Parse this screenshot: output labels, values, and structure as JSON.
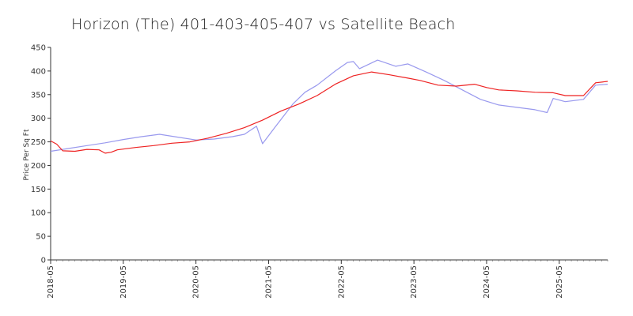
{
  "chart_data": {
    "type": "line",
    "title": "Horizon (The) 401-403-405-407 vs Satellite Beach",
    "xlabel": "",
    "ylabel": "Price Per Sq Ft",
    "ylim": [
      0,
      450
    ],
    "yticks": [
      0,
      50,
      100,
      150,
      200,
      250,
      300,
      350,
      400,
      450
    ],
    "xlim": [
      "2018-05",
      "2026-01"
    ],
    "xticks": [
      "2018-05",
      "2019-05",
      "2020-05",
      "2021-05",
      "2022-05",
      "2023-05",
      "2024-05",
      "2025-05"
    ],
    "grid": false,
    "legend": "none",
    "series": [
      {
        "color": "#9999ee",
        "points": [
          [
            "2018-05",
            230
          ],
          [
            "2018-08",
            236
          ],
          [
            "2018-11",
            242
          ],
          [
            "2019-02",
            248
          ],
          [
            "2019-05",
            255
          ],
          [
            "2019-08",
            261
          ],
          [
            "2019-11",
            266
          ],
          [
            "2020-02",
            260
          ],
          [
            "2020-05",
            254
          ],
          [
            "2020-08",
            256
          ],
          [
            "2020-11",
            261
          ],
          [
            "2021-01",
            266
          ],
          [
            "2021-03",
            283
          ],
          [
            "2021-04",
            246
          ],
          [
            "2021-06",
            280
          ],
          [
            "2021-09",
            330
          ],
          [
            "2021-11",
            355
          ],
          [
            "2022-01",
            370
          ],
          [
            "2022-04",
            400
          ],
          [
            "2022-06",
            418
          ],
          [
            "2022-07",
            420
          ],
          [
            "2022-08",
            405
          ],
          [
            "2022-11",
            423
          ],
          [
            "2023-02",
            410
          ],
          [
            "2023-04",
            415
          ],
          [
            "2023-07",
            398
          ],
          [
            "2023-10",
            380
          ],
          [
            "2024-01",
            360
          ],
          [
            "2024-04",
            340
          ],
          [
            "2024-07",
            328
          ],
          [
            "2024-10",
            323
          ],
          [
            "2025-01",
            318
          ],
          [
            "2025-03",
            312
          ],
          [
            "2025-04",
            342
          ],
          [
            "2025-06",
            335
          ],
          [
            "2025-09",
            340
          ],
          [
            "2025-11",
            370
          ],
          [
            "2026-01",
            372
          ]
        ]
      },
      {
        "color": "#ee2222",
        "points": [
          [
            "2018-05",
            252
          ],
          [
            "2018-06",
            245
          ],
          [
            "2018-07",
            231
          ],
          [
            "2018-09",
            230
          ],
          [
            "2018-11",
            234
          ],
          [
            "2019-01",
            233
          ],
          [
            "2019-02",
            226
          ],
          [
            "2019-03",
            228
          ],
          [
            "2019-04",
            233
          ],
          [
            "2019-07",
            238
          ],
          [
            "2019-10",
            242
          ],
          [
            "2020-01",
            247
          ],
          [
            "2020-04",
            250
          ],
          [
            "2020-07",
            258
          ],
          [
            "2020-10",
            268
          ],
          [
            "2021-01",
            280
          ],
          [
            "2021-04",
            296
          ],
          [
            "2021-07",
            315
          ],
          [
            "2021-10",
            330
          ],
          [
            "2022-01",
            348
          ],
          [
            "2022-04",
            372
          ],
          [
            "2022-07",
            390
          ],
          [
            "2022-10",
            398
          ],
          [
            "2023-01",
            392
          ],
          [
            "2023-04",
            385
          ],
          [
            "2023-06",
            380
          ],
          [
            "2023-09",
            370
          ],
          [
            "2023-12",
            368
          ],
          [
            "2024-03",
            372
          ],
          [
            "2024-05",
            365
          ],
          [
            "2024-07",
            360
          ],
          [
            "2024-10",
            358
          ],
          [
            "2025-01",
            355
          ],
          [
            "2025-04",
            354
          ],
          [
            "2025-06",
            348
          ],
          [
            "2025-09",
            348
          ],
          [
            "2025-11",
            375
          ],
          [
            "2026-01",
            378
          ]
        ]
      }
    ]
  }
}
